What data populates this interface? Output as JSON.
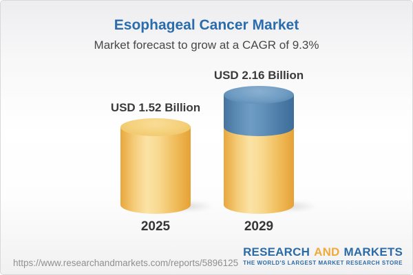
{
  "header": {
    "title": "Esophageal Cancer Market",
    "subtitle": "Market forecast to grow at a CAGR of 9.3%"
  },
  "chart_data": {
    "type": "bar",
    "style": "3d-cylinder",
    "title": "Esophageal Cancer Market",
    "subtitle": "Market forecast to grow at a CAGR of 9.3%",
    "categories": [
      "2025",
      "2029"
    ],
    "values": [
      1.52,
      2.16
    ],
    "value_labels": [
      "USD 1.52 Billion",
      "USD 2.16 Billion"
    ],
    "unit": "USD Billion",
    "cagr_percent": 9.3,
    "ylim": [
      0,
      2.16
    ],
    "grid": false,
    "legend": false,
    "segment_note": "2029 cylinder shows 2025 base value in gold with incremental growth segment in blue on top",
    "colors": {
      "base_gold": "#f2c36b",
      "growth_blue": "#5d8cb5",
      "title_blue": "#2a6cac",
      "label_dark": "#3b3b3b"
    }
  },
  "footer": {
    "report_url": "https://www.researchandmarkets.com/reports/5896125",
    "logo": {
      "word1": "RESEARCH",
      "word2": "AND",
      "word3": "MARKETS",
      "tagline": "THE WORLD'S LARGEST MARKET RESEARCH STORE",
      "blue": "#2a6ba7",
      "orange": "#f0a93b"
    }
  }
}
